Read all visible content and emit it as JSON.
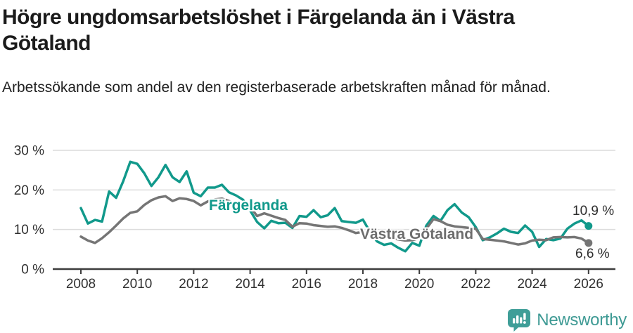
{
  "header": {
    "title": "Högre ungdomsarbetslöshet i Färgelanda än i Västra Götaland",
    "subtitle": "Arbetssökande som andel av den registerbaserade arbetskraften månad för månad."
  },
  "footer": {
    "brand": "Newsworthy",
    "logo_icon": "bar-chart-speech-bubble-icon",
    "brand_color": "#3e9a94"
  },
  "colors": {
    "accent_teal": "#11998b",
    "series_gray": "#757575",
    "grid": "#dcdcdc",
    "axis": "#3d3d3d",
    "tick_text": "#303030",
    "title_text": "#1b1b1b"
  },
  "chart_data": {
    "type": "line",
    "title": "Högre ungdomsarbetslöshet i Färgelanda än i Västra Götaland",
    "subtitle": "Arbetssökande som andel av den registerbaserade arbetskraften månad för månad.",
    "unit": "%",
    "ylim": [
      0,
      30
    ],
    "grid": true,
    "legend_position": "inline-labels",
    "y_ticks": [
      {
        "label": "0 %",
        "value": 0
      },
      {
        "label": "10 %",
        "value": 10
      },
      {
        "label": "20 %",
        "value": 20
      },
      {
        "label": "30 %",
        "value": 30
      }
    ],
    "x_ticks": [
      {
        "label": "2008",
        "value": 2008
      },
      {
        "label": "2010",
        "value": 2010
      },
      {
        "label": "2012",
        "value": 2012
      },
      {
        "label": "2014",
        "value": 2014
      },
      {
        "label": "2016",
        "value": 2016
      },
      {
        "label": "2018",
        "value": 2018
      },
      {
        "label": "2020",
        "value": 2020
      },
      {
        "label": "2022",
        "value": 2022
      },
      {
        "label": "2024",
        "value": 2024
      },
      {
        "label": "2026",
        "value": 2026
      }
    ],
    "x": [
      2008,
      2008.25,
      2008.5,
      2008.75,
      2009,
      2009.25,
      2009.5,
      2009.75,
      2010,
      2010.25,
      2010.5,
      2010.75,
      2011,
      2011.25,
      2011.5,
      2011.75,
      2012,
      2012.25,
      2012.5,
      2012.75,
      2013,
      2013.25,
      2013.5,
      2013.75,
      2014,
      2014.25,
      2014.5,
      2014.75,
      2015,
      2015.25,
      2015.5,
      2015.75,
      2016,
      2016.25,
      2016.5,
      2016.75,
      2017,
      2017.25,
      2017.5,
      2017.75,
      2018,
      2018.25,
      2018.5,
      2018.75,
      2019,
      2019.25,
      2019.5,
      2019.75,
      2020,
      2020.25,
      2020.5,
      2020.75,
      2021,
      2021.25,
      2021.5,
      2021.75,
      2022,
      2022.25,
      2022.5,
      2022.75,
      2023,
      2023.25,
      2023.5,
      2023.75,
      2024,
      2024.25,
      2024.5,
      2024.75,
      2025,
      2025.25,
      2025.5,
      2025.75,
      2026
    ],
    "series": [
      {
        "name": "Färgelanda",
        "color": "#11998b",
        "end_label": "10,9 %",
        "end_value": 10.9,
        "values": [
          15.4,
          11.5,
          12.4,
          12.0,
          19.6,
          18.0,
          22.2,
          27.1,
          26.6,
          24.2,
          21.0,
          23.2,
          26.3,
          23.2,
          22.0,
          24.7,
          19.3,
          18.4,
          20.6,
          20.6,
          21.3,
          19.4,
          18.6,
          17.5,
          14.8,
          11.9,
          10.3,
          12.2,
          11.6,
          11.7,
          10.4,
          13.4,
          13.2,
          14.9,
          13.1,
          13.6,
          15.4,
          12.1,
          11.9,
          11.7,
          12.5,
          9.4,
          7.0,
          6.1,
          6.5,
          5.4,
          4.5,
          6.6,
          5.9,
          11.0,
          13.4,
          12.2,
          14.9,
          16.4,
          14.3,
          13.1,
          10.6,
          7.3,
          8.0,
          9.0,
          10.2,
          9.4,
          9.1,
          11.0,
          9.4,
          5.6,
          7.6,
          7.3,
          7.7,
          10.2,
          11.5,
          12.3,
          10.9
        ]
      },
      {
        "name": "Västra Götaland",
        "color": "#757575",
        "end_label": "6,6 %",
        "end_value": 6.6,
        "values": [
          8.2,
          7.2,
          6.6,
          7.8,
          9.3,
          11.0,
          12.8,
          14.2,
          14.6,
          16.2,
          17.4,
          18.1,
          18.4,
          17.2,
          17.9,
          17.7,
          17.2,
          16.1,
          17.1,
          17.6,
          17.8,
          17.2,
          16.2,
          15.1,
          15.7,
          13.4,
          14.1,
          13.5,
          12.9,
          12.4,
          10.7,
          11.6,
          11.5,
          11.1,
          10.9,
          10.7,
          10.8,
          10.4,
          9.8,
          9.1,
          9.4,
          9.3,
          8.7,
          8.1,
          7.9,
          7.5,
          7.2,
          7.3,
          7.8,
          10.2,
          12.6,
          12.1,
          11.2,
          10.8,
          10.6,
          10.4,
          10.2,
          7.6,
          7.4,
          7.2,
          7.0,
          6.6,
          6.2,
          6.5,
          7.2,
          7.4,
          7.3,
          8.0,
          8.1,
          8.0,
          8.1,
          7.7,
          6.6
        ]
      }
    ]
  }
}
